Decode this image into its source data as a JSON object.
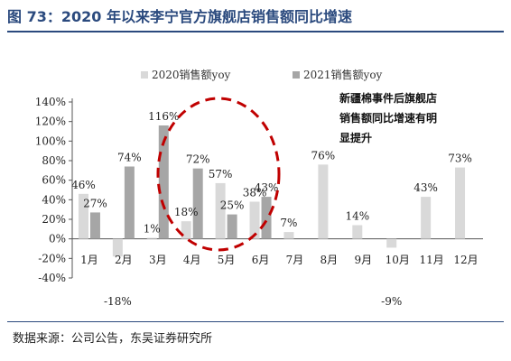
{
  "figure": {
    "title": "图 73：2020 年以来李宁官方旗舰店销售额同比增速",
    "source": "数据来源：公司公告，东吴证券研究所",
    "annotation": [
      "新疆棉事件后旗舰店",
      "销售额同比增速有明",
      "显提升"
    ]
  },
  "colors": {
    "series_2020": "#d9d9d9",
    "series_2021": "#a6a6a6",
    "circle": "#c00000",
    "title": "#2b4a7e"
  },
  "chart_data": {
    "type": "bar",
    "categories": [
      "1月",
      "2月",
      "3月",
      "4月",
      "5月",
      "6月",
      "7月",
      "8月",
      "9月",
      "10月",
      "11月",
      "12月"
    ],
    "series": [
      {
        "name": "2020销售额yoy",
        "values": [
          46,
          -18,
          1,
          18,
          57,
          38,
          7,
          76,
          14,
          -9,
          43,
          73
        ]
      },
      {
        "name": "2021销售额yoy",
        "values": [
          27,
          74,
          116,
          72,
          25,
          43,
          null,
          null,
          null,
          null,
          null,
          null
        ]
      }
    ],
    "data_labels": {
      "2020销售额yoy": [
        "46%",
        "-18%",
        "1%",
        "18%",
        "57%",
        "38%",
        "7%",
        "76%",
        "14%",
        "-9%",
        "43%",
        "73%"
      ],
      "2021销售额yoy": [
        "27%",
        "74%",
        "116%",
        "72%",
        "25%",
        "43%",
        null,
        null,
        null,
        null,
        null,
        null
      ]
    },
    "ylim": [
      -40,
      140
    ],
    "yticks": [
      -40,
      -20,
      0,
      20,
      40,
      60,
      80,
      100,
      120,
      140
    ],
    "ytick_labels": [
      "-40%",
      "-20%",
      "0%",
      "20%",
      "40%",
      "60%",
      "80%",
      "100%",
      "120%",
      "140%"
    ],
    "grid": false,
    "legend_position": "top"
  }
}
